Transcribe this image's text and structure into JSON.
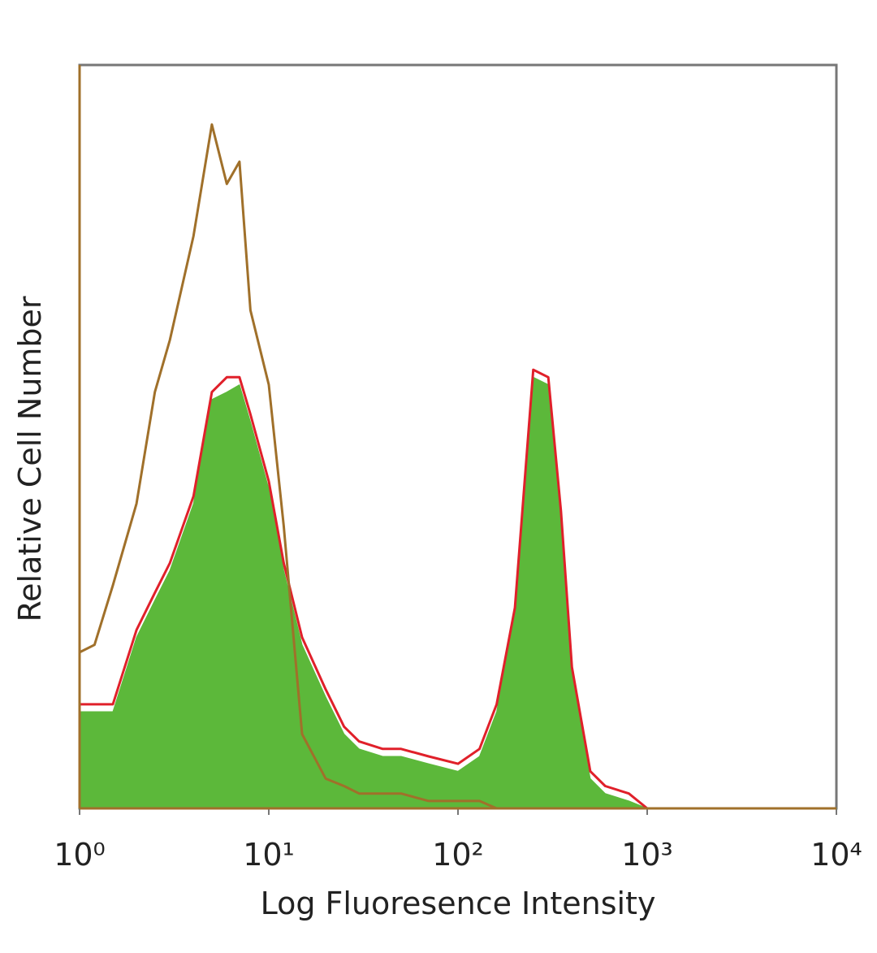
{
  "chart_data": {
    "type": "histogram-overlay",
    "x_label": "Log Fluoresence Intensity",
    "y_label": "Relative Cell Number",
    "log_x": true,
    "xlim": [
      1,
      10000
    ],
    "ylim": [
      0,
      100
    ],
    "xticks": [
      {
        "value": 1,
        "label": "10⁰"
      },
      {
        "value": 10,
        "label": "10¹"
      },
      {
        "value": 100,
        "label": "10²"
      },
      {
        "value": 1000,
        "label": "10³"
      },
      {
        "value": 10000,
        "label": "10⁴"
      }
    ],
    "x": [
      1,
      1.2,
      1.5,
      2,
      2.5,
      3,
      4,
      5,
      6,
      7,
      8,
      10,
      12,
      15,
      20,
      25,
      30,
      40,
      50,
      70,
      100,
      130,
      160,
      200,
      250,
      300,
      350,
      400,
      500,
      600,
      800,
      1000,
      10000
    ],
    "series": [
      {
        "color": "#5cb83a",
        "filled": true,
        "values": [
          13,
          13,
          13,
          23,
          28,
          32,
          41,
          55,
          56,
          57,
          52,
          43,
          32,
          22,
          15,
          10,
          8,
          7,
          7,
          6,
          5,
          7,
          13,
          26,
          58,
          57,
          39,
          18,
          4,
          2,
          1,
          0,
          0
        ]
      },
      {
        "color": "#e0202a",
        "filled": false,
        "values": [
          14,
          14,
          14,
          24,
          29,
          33,
          42,
          56,
          58,
          58,
          53,
          44,
          33,
          23,
          16,
          11,
          9,
          8,
          8,
          7,
          6,
          8,
          14,
          27,
          59,
          58,
          40,
          19,
          5,
          3,
          2,
          0,
          0
        ]
      },
      {
        "color": "#a0702a",
        "filled": false,
        "values": [
          21,
          22,
          30,
          41,
          56,
          63,
          77,
          92,
          84,
          87,
          67,
          57,
          38,
          10,
          4,
          3,
          2,
          2,
          2,
          1,
          1,
          1,
          0,
          0,
          0,
          0,
          0,
          0,
          0,
          0,
          0,
          0,
          0
        ]
      }
    ]
  }
}
